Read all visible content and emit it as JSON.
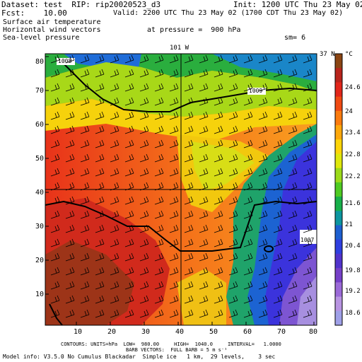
{
  "header": {
    "dataset": "Dataset: test  RIP: rip20020523_d3",
    "init": "Init: 1200 UTC Thu 23 May 02",
    "fcst": "Fcst:    10.00",
    "valid": "Valid: 2200 UTC Thu 23 May 02 (1700 CDT Thu 23 May 02)",
    "field1": "Surface air temperature",
    "field2": "Horizontal wind vectors",
    "field3": "Sea-level pressure",
    "pressure": "at pressure =  900 hPa",
    "sm": "sm= 6"
  },
  "map": {
    "cross_label_top": "101 W",
    "cross_label_right": "37 N",
    "x_ticks": [
      "10",
      "20",
      "30",
      "40",
      "50",
      "60",
      "70",
      "80"
    ],
    "y_ticks": [
      "10",
      "20",
      "30",
      "40",
      "50",
      "60",
      "70",
      "80"
    ],
    "contour_labels": [
      "1008",
      "1009",
      "1007"
    ],
    "colorbar_unit": "°C",
    "colorbar_ticks": [
      "24.6",
      "24",
      "23.4",
      "22.8",
      "22.2",
      "21.6",
      "21",
      "20.4",
      "19.8",
      "19.2",
      "18.6"
    ],
    "colorbar_colors": [
      "#8b4513",
      "#b8241c",
      "#e2261a",
      "#f04a12",
      "#fb7b0e",
      "#fda80b",
      "#fed508",
      "#dfe80c",
      "#9cdb19",
      "#4fcb22",
      "#17b04a",
      "#0c95a0",
      "#1d5fd0",
      "#2f3fe0",
      "#5133cc",
      "#7640c8",
      "#9b6ad8",
      "#b894e2",
      "#9fa0e8"
    ]
  },
  "footer": {
    "line1": "CONTOURS: UNITS=hPa  LOW=  980.00     HIGH=  1040.0     INTERVAL=   1.0000",
    "line2": "BARB VECTORS:  FULL BARB = 5 m s⁻¹",
    "line3": "Model info: V3.5.0 No Cumulus Blackadar  Simple ice   1 km,  29 levels,    3 sec"
  }
}
